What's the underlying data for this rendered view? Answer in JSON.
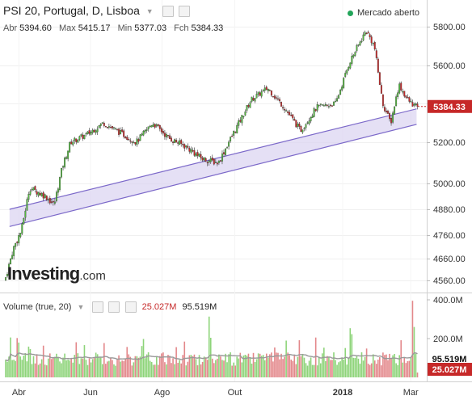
{
  "header": {
    "title": "PSI 20, Portugal, D, Lisboa",
    "ohlc": [
      {
        "label": "Abr",
        "value": "5394.60"
      },
      {
        "label": "Max",
        "value": "5415.17"
      },
      {
        "label": "Min",
        "value": "5377.03"
      },
      {
        "label": "Fch",
        "value": "5384.33"
      }
    ],
    "status": "Mercado aberto",
    "volume_title": "Volume (true, 20)",
    "volume_value": "25.027M",
    "volume_ma_value": "95.519M"
  },
  "logo": {
    "main": "Investing",
    "suffix": ".com"
  },
  "colors": {
    "up": "#53b93f",
    "down": "#c62828",
    "channel": "#7b68c9",
    "channel_fill": "#dcd6f2",
    "ma": "#999999",
    "live": "#23a55a"
  },
  "chart_data": {
    "type": "candlestick",
    "price_axis": {
      "ticks": [
        4560,
        4660,
        4760,
        4880,
        5000,
        5200,
        5400,
        5600,
        5800
      ],
      "range": [
        4520,
        5880
      ]
    },
    "volume_axis": {
      "ticks": [
        "200.0M",
        "400.0M"
      ],
      "range_millions": [
        0,
        420
      ]
    },
    "x_ticks": [
      "Abr",
      "Jun",
      "Ago",
      "Out",
      "2018",
      "Mar"
    ],
    "last_price_label": "5384.33",
    "volume_labels": [
      "95.519M",
      "25.027M"
    ],
    "approx_path": [
      {
        "date": "2017-03-20",
        "close": 4560
      },
      {
        "date": "2017-03-27",
        "close": 4700
      },
      {
        "date": "2017-04-03",
        "close": 4780
      },
      {
        "date": "2017-04-10",
        "close": 4980
      },
      {
        "date": "2017-04-24",
        "close": 4940
      },
      {
        "date": "2017-05-01",
        "close": 4900
      },
      {
        "date": "2017-05-08",
        "close": 5080
      },
      {
        "date": "2017-05-15",
        "close": 5200
      },
      {
        "date": "2017-05-29",
        "close": 5240
      },
      {
        "date": "2017-06-12",
        "close": 5300
      },
      {
        "date": "2017-06-26",
        "close": 5250
      },
      {
        "date": "2017-07-10",
        "close": 5200
      },
      {
        "date": "2017-07-24",
        "close": 5300
      },
      {
        "date": "2017-08-07",
        "close": 5220
      },
      {
        "date": "2017-08-21",
        "close": 5180
      },
      {
        "date": "2017-09-04",
        "close": 5120
      },
      {
        "date": "2017-09-18",
        "close": 5100
      },
      {
        "date": "2017-10-02",
        "close": 5260
      },
      {
        "date": "2017-10-16",
        "close": 5420
      },
      {
        "date": "2017-10-30",
        "close": 5480
      },
      {
        "date": "2017-11-13",
        "close": 5380
      },
      {
        "date": "2017-11-27",
        "close": 5260
      },
      {
        "date": "2017-12-11",
        "close": 5380
      },
      {
        "date": "2017-12-27",
        "close": 5400
      },
      {
        "date": "2018-01-08",
        "close": 5620
      },
      {
        "date": "2018-01-22",
        "close": 5780
      },
      {
        "date": "2018-01-29",
        "close": 5700
      },
      {
        "date": "2018-02-05",
        "close": 5400
      },
      {
        "date": "2018-02-12",
        "close": 5300
      },
      {
        "date": "2018-02-19",
        "close": 5500
      },
      {
        "date": "2018-02-26",
        "close": 5420
      },
      {
        "date": "2018-03-05",
        "close": 5384
      }
    ],
    "channel": {
      "lower": [
        {
          "date": "2017-03-24",
          "value": 4800
        },
        {
          "date": "2018-03-06",
          "value": 5292
        }
      ],
      "upper": [
        {
          "date": "2017-03-24",
          "value": 4880
        },
        {
          "date": "2018-03-06",
          "value": 5372
        }
      ]
    }
  }
}
